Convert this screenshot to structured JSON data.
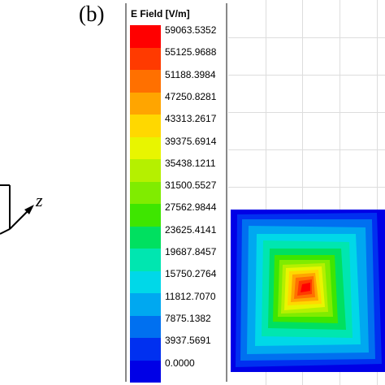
{
  "panel": {
    "label": "(b)"
  },
  "axis": {
    "z_label": "z"
  },
  "legend": {
    "title": "E Field [V/m]",
    "ticks": [
      "59063.5352",
      "55125.9688",
      "51188.3984",
      "47250.8281",
      "43313.2617",
      "39375.6914",
      "35438.1211",
      "31500.5527",
      "27562.9844",
      "23625.4141",
      "19687.8457",
      "15750.2764",
      "11812.7070",
      "7875.1382",
      "3937.5691",
      "0.0000"
    ],
    "colors": [
      "#ff0000",
      "#ff3a00",
      "#ff7000",
      "#ffa500",
      "#ffd800",
      "#e8f500",
      "#b5f000",
      "#80ec00",
      "#3ee600",
      "#00e060",
      "#00e6b0",
      "#00d8e8",
      "#00a8f0",
      "#0070f0",
      "#0030f0",
      "#0000e6"
    ]
  },
  "chart_data": {
    "type": "heatmap",
    "title": "E Field [V/m]",
    "zlim": [
      0.0,
      59063.5352
    ],
    "colorbar_levels": [
      0.0,
      3937.5691,
      7875.1382,
      11812.707,
      15750.2764,
      19687.8457,
      23625.4141,
      27562.9844,
      31500.5527,
      35438.1211,
      39375.6914,
      43313.2617,
      47250.8281,
      51188.3984,
      55125.9688,
      59063.5352
    ]
  }
}
